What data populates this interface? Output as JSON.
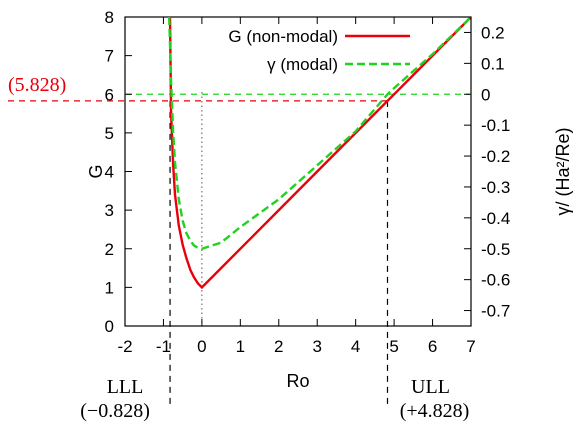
{
  "chart_data": {
    "type": "line",
    "title": "",
    "xlabel": "Ro",
    "ylabel": "G",
    "y2label": "γ/ (Ha²/Re)",
    "xlim": [
      -2,
      7
    ],
    "ylim": [
      0,
      8
    ],
    "y2lim": [
      -0.75,
      0.25
    ],
    "xticks": [
      "-2",
      "-1",
      "0",
      "1",
      "2",
      "3",
      "4",
      "5",
      "6",
      "7"
    ],
    "yticks": [
      "0",
      "1",
      "2",
      "3",
      "4",
      "5",
      "6",
      "7",
      "8"
    ],
    "y2ticks": [
      "-0.7",
      "-0.6",
      "-0.5",
      "-0.4",
      "-0.3",
      "-0.2",
      "-0.1",
      "0",
      "0.1",
      "0.2"
    ],
    "grid": false,
    "legend_position": "top-right",
    "series": [
      {
        "name": "G (non-modal)",
        "axis": "left",
        "color": "#e8000b",
        "style": "solid",
        "x": [
          -0.83,
          -0.8,
          -0.75,
          -0.7,
          -0.6,
          -0.5,
          -0.4,
          -0.3,
          -0.2,
          -0.1,
          0,
          0.5,
          1,
          2,
          3,
          4,
          4.828,
          5,
          6,
          7
        ],
        "values": [
          8.0,
          5.5,
          4.2,
          3.4,
          2.6,
          2.1,
          1.75,
          1.45,
          1.25,
          1.1,
          1.0,
          1.5,
          2.0,
          3.0,
          4.0,
          5.0,
          5.828,
          6.0,
          7.0,
          8.0
        ]
      },
      {
        "name": "γ (modal)",
        "axis": "right",
        "color": "#1fd31f",
        "style": "dashed",
        "x": [
          -0.85,
          -0.8,
          -0.75,
          -0.7,
          -0.6,
          -0.5,
          -0.4,
          -0.3,
          -0.2,
          -0.1,
          0,
          0.5,
          1,
          2,
          3,
          4,
          4.828,
          5,
          6,
          7
        ],
        "values": [
          0.25,
          0.04,
          -0.12,
          -0.22,
          -0.34,
          -0.41,
          -0.45,
          -0.475,
          -0.49,
          -0.497,
          -0.5,
          -0.48,
          -0.43,
          -0.34,
          -0.23,
          -0.12,
          0.0,
          0.02,
          0.13,
          0.25
        ]
      }
    ],
    "annotations": {
      "g_level_label": "(5.828)",
      "g_level_value": 5.828,
      "left_marker_x": -0.828,
      "left_marker_name": "LLL",
      "left_marker_value": "(−0.828)",
      "right_marker_x": 4.828,
      "right_marker_name": "ULL",
      "right_marker_value": "(+4.828)",
      "zero_line_x": 0
    }
  }
}
